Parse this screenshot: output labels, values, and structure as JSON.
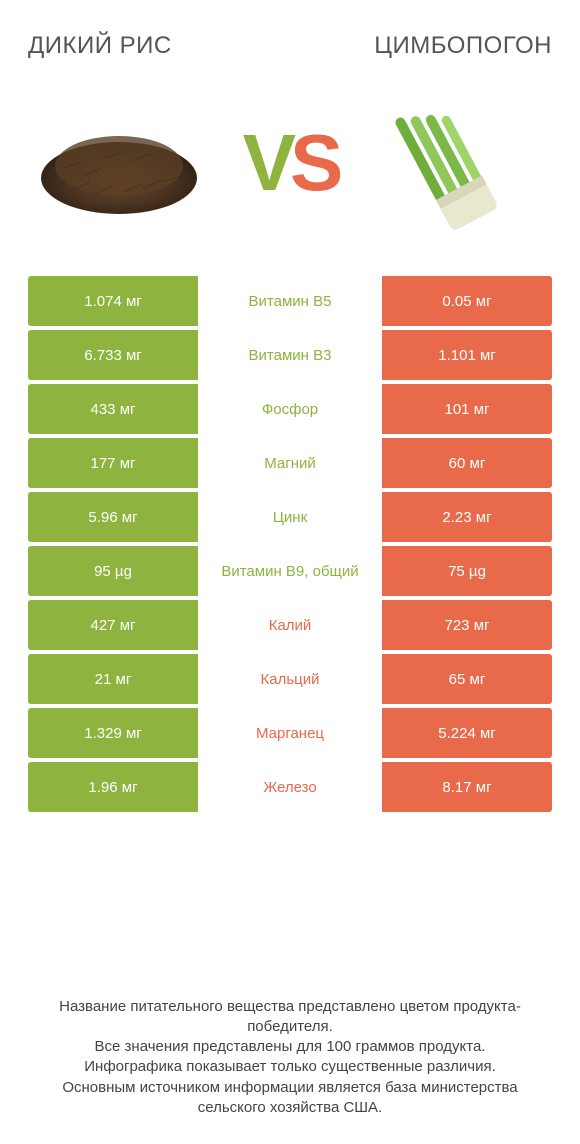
{
  "colors": {
    "green": "#8eb43f",
    "orange": "#e96a4a",
    "text": "#555555"
  },
  "title_left": "ДИКИЙ РИС",
  "title_right": "ЦИМБОПОГОН",
  "vs_v": "V",
  "vs_s": "S",
  "rows": [
    {
      "left": "1.074 мг",
      "mid": "Витамин B5",
      "right": "0.05 мг",
      "winner": "left"
    },
    {
      "left": "6.733 мг",
      "mid": "Витамин B3",
      "right": "1.101 мг",
      "winner": "left"
    },
    {
      "left": "433 мг",
      "mid": "Фосфор",
      "right": "101 мг",
      "winner": "left"
    },
    {
      "left": "177 мг",
      "mid": "Магний",
      "right": "60 мг",
      "winner": "left"
    },
    {
      "left": "5.96 мг",
      "mid": "Цинк",
      "right": "2.23 мг",
      "winner": "left"
    },
    {
      "left": "95 µg",
      "mid": "Витамин B9, общий",
      "right": "75 µg",
      "winner": "left"
    },
    {
      "left": "427 мг",
      "mid": "Калий",
      "right": "723 мг",
      "winner": "right"
    },
    {
      "left": "21 мг",
      "mid": "Кальций",
      "right": "65 мг",
      "winner": "right"
    },
    {
      "left": "1.329 мг",
      "mid": "Марганец",
      "right": "5.224 мг",
      "winner": "right"
    },
    {
      "left": "1.96 мг",
      "mid": "Железо",
      "right": "8.17 мг",
      "winner": "right"
    }
  ],
  "footer": "Название питательного вещества представлено цветом продукта-победителя.\nВсе значения представлены для 100 граммов продукта.\nИнфографика показывает только существенные различия.\nОсновным источником информации является база министерства сельского хозяйства США."
}
